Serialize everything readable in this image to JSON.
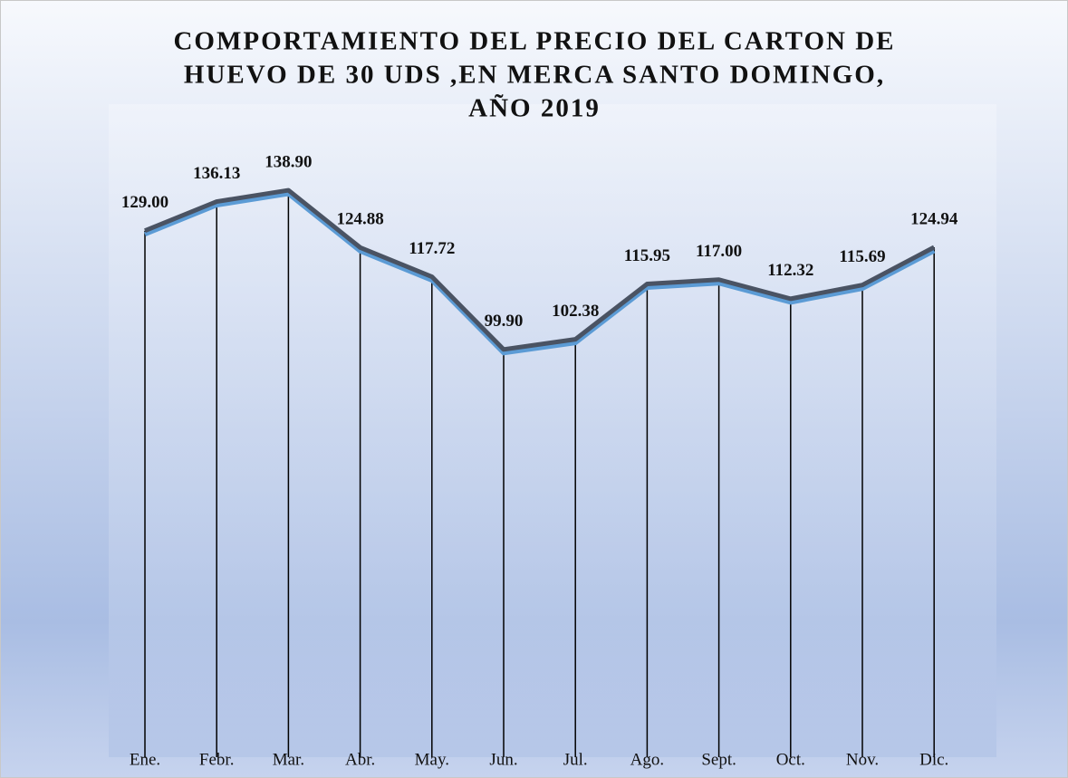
{
  "chart_data": {
    "type": "line",
    "title": [
      "COMPORTAMIENTO DEL PRECIO DEL CARTON DE",
      "HUEVO DE 30 UDS ,EN MERCA SANTO DOMINGO,",
      "AÑO 2019"
    ],
    "categories": [
      "Ene.",
      "Febr.",
      "Mar.",
      "Abr.",
      "May.",
      "Jun.",
      "Jul.",
      "Ago.",
      "Sept.",
      "Oct.",
      "Nov.",
      "Dic."
    ],
    "values": [
      129,
      136.13,
      138.9,
      124.88,
      117.72,
      99.9,
      102.38,
      115.95,
      117,
      112.32,
      115.69,
      124.94
    ],
    "value_labels": [
      "129.00",
      "136.13",
      "138.90",
      "124.88",
      "117.72",
      "99.90",
      "102.38",
      "115.95",
      "117.00",
      "112.32",
      "115.69",
      "124.94"
    ],
    "color": "#4a5363",
    "ylim": [
      0,
      160
    ],
    "drop_lines": true
  }
}
